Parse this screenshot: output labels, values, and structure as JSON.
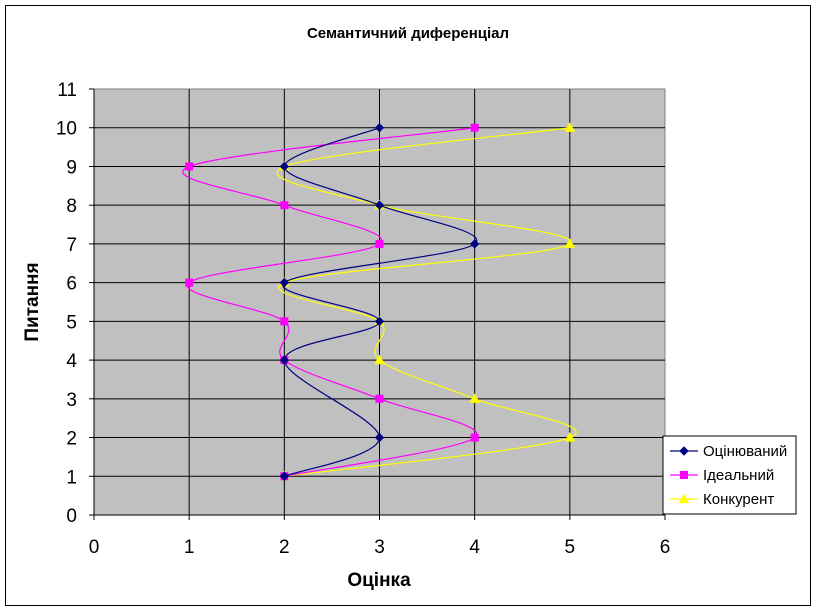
{
  "chart_data": {
    "type": "scatter",
    "title": "Семантичний диференціал",
    "xlabel": "Оцінка",
    "ylabel": "Питання",
    "xlim": [
      0,
      6
    ],
    "ylim": [
      0,
      11
    ],
    "x_ticks": [
      "0",
      "1",
      "2",
      "3",
      "4",
      "5",
      "6"
    ],
    "y_ticks": [
      "0",
      "1",
      "2",
      "3",
      "4",
      "5",
      "6",
      "7",
      "8",
      "9",
      "10",
      "11"
    ],
    "grid": true,
    "plot_background": "#c0c0c0",
    "legend_position": "bottom-right",
    "series": [
      {
        "name": "Оцінюваний",
        "color": "#000080",
        "marker": "diamond",
        "x": [
          2,
          3,
          2,
          3,
          2,
          4,
          3,
          2,
          3
        ],
        "y": [
          1,
          2,
          4,
          5,
          6,
          7,
          8,
          9,
          10
        ]
      },
      {
        "name": "Ідеальний",
        "color": "#ff00ff",
        "marker": "square",
        "x": [
          2,
          4,
          3,
          2,
          2,
          1,
          3,
          2,
          1,
          4
        ],
        "y": [
          1,
          2,
          3,
          4,
          5,
          6,
          7,
          8,
          9,
          10
        ]
      },
      {
        "name": "Конкурент",
        "color": "#ffff00",
        "marker": "triangle",
        "x": [
          2,
          5,
          4,
          3,
          3,
          2,
          5,
          3,
          2,
          5
        ],
        "y": [
          1,
          2,
          3,
          4,
          5,
          6,
          7,
          8,
          9,
          10
        ]
      }
    ]
  }
}
